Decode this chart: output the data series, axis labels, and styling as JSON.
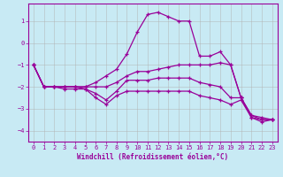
{
  "xlabel": "Windchill (Refroidissement éolien,°C)",
  "xlim": [
    -0.5,
    23.5
  ],
  "ylim": [
    -4.5,
    1.8
  ],
  "yticks": [
    -4,
    -3,
    -2,
    -1,
    0,
    1
  ],
  "xticks": [
    0,
    1,
    2,
    3,
    4,
    5,
    6,
    7,
    8,
    9,
    10,
    11,
    12,
    13,
    14,
    15,
    16,
    17,
    18,
    19,
    20,
    21,
    22,
    23
  ],
  "background_color": "#c8eaf4",
  "line_color": "#990099",
  "grid_color": "#b0b0b0",
  "lines": [
    {
      "x": [
        0,
        1,
        2,
        3,
        4,
        5,
        6,
        7,
        8,
        9,
        10,
        11,
        12,
        13,
        14,
        15,
        16,
        17,
        18,
        19,
        20,
        21,
        22,
        23
      ],
      "y": [
        -1.0,
        -2.0,
        -2.0,
        -2.0,
        -2.0,
        -2.0,
        -1.8,
        -1.5,
        -1.2,
        -0.5,
        0.5,
        1.3,
        1.4,
        1.2,
        1.0,
        1.0,
        -0.6,
        -0.6,
        -0.4,
        -1.0,
        -2.5,
        -3.4,
        -3.5,
        -3.5
      ]
    },
    {
      "x": [
        0,
        1,
        2,
        3,
        4,
        5,
        6,
        7,
        8,
        9,
        10,
        11,
        12,
        13,
        14,
        15,
        16,
        17,
        18,
        19,
        20,
        21,
        22,
        23
      ],
      "y": [
        -1.0,
        -2.0,
        -2.0,
        -2.0,
        -2.0,
        -2.0,
        -2.0,
        -2.0,
        -1.8,
        -1.5,
        -1.3,
        -1.3,
        -1.2,
        -1.1,
        -1.0,
        -1.0,
        -1.0,
        -1.0,
        -0.9,
        -1.0,
        -2.5,
        -3.3,
        -3.4,
        -3.5
      ]
    },
    {
      "x": [
        0,
        1,
        2,
        3,
        4,
        5,
        6,
        7,
        8,
        9,
        10,
        11,
        12,
        13,
        14,
        15,
        16,
        17,
        18,
        19,
        20,
        21,
        22,
        23
      ],
      "y": [
        -1.0,
        -2.0,
        -2.0,
        -2.0,
        -2.0,
        -2.1,
        -2.3,
        -2.6,
        -2.2,
        -1.7,
        -1.7,
        -1.7,
        -1.6,
        -1.6,
        -1.6,
        -1.6,
        -1.8,
        -1.9,
        -2.0,
        -2.5,
        -2.5,
        -3.3,
        -3.5,
        -3.5
      ]
    },
    {
      "x": [
        0,
        1,
        2,
        3,
        4,
        5,
        6,
        7,
        8,
        9,
        10,
        11,
        12,
        13,
        14,
        15,
        16,
        17,
        18,
        19,
        20,
        21,
        22,
        23
      ],
      "y": [
        -1.0,
        -2.0,
        -2.0,
        -2.1,
        -2.1,
        -2.1,
        -2.5,
        -2.8,
        -2.4,
        -2.2,
        -2.2,
        -2.2,
        -2.2,
        -2.2,
        -2.2,
        -2.2,
        -2.4,
        -2.5,
        -2.6,
        -2.8,
        -2.6,
        -3.4,
        -3.6,
        -3.5
      ]
    }
  ]
}
